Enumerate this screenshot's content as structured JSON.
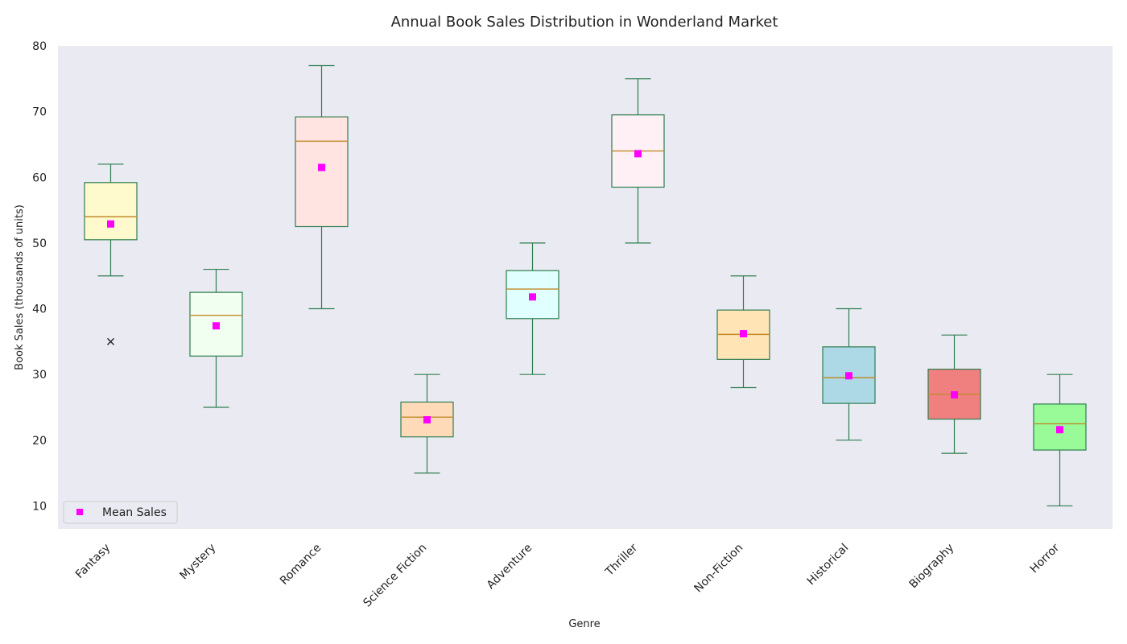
{
  "chart_data": {
    "type": "box",
    "title": "Annual Book Sales Distribution in Wonderland Market",
    "xlabel": "Genre",
    "ylabel": "Book Sales (thousands of units)",
    "ylim": [
      6.5,
      80
    ],
    "yticks": [
      10,
      20,
      30,
      40,
      50,
      60,
      70,
      80
    ],
    "grid": false,
    "legend": {
      "position": "lower-left",
      "entries": [
        "Mean Sales"
      ]
    },
    "colors": {
      "plot_bg": "#eaeaf2",
      "box_edge": "#2e7d4f",
      "median": "#c08a2a",
      "mean_marker": "#ff00ff",
      "outlier": "#222222"
    },
    "categories": [
      "Fantasy",
      "Mystery",
      "Romance",
      "Science Fiction",
      "Adventure",
      "Thriller",
      "Non-Fiction",
      "Historical",
      "Biography",
      "Horror"
    ],
    "boxes": [
      {
        "min": 45,
        "q1": 50.5,
        "median": 54,
        "q3": 59.2,
        "max": 62,
        "mean": 52.9,
        "outliers": [
          35
        ],
        "fill": "#fffacd"
      },
      {
        "min": 25,
        "q1": 32.8,
        "median": 39,
        "q3": 42.5,
        "max": 46,
        "mean": 37.4,
        "outliers": [],
        "fill": "#f0fff0"
      },
      {
        "min": 40,
        "q1": 52.5,
        "median": 65.5,
        "q3": 69.2,
        "max": 77,
        "mean": 61.5,
        "outliers": [],
        "fill": "#ffe4e1"
      },
      {
        "min": 15,
        "q1": 20.5,
        "median": 23.5,
        "q3": 25.8,
        "max": 30,
        "mean": 23.1,
        "outliers": [],
        "fill": "#ffdab9"
      },
      {
        "min": 30,
        "q1": 38.5,
        "median": 43,
        "q3": 45.8,
        "max": 50,
        "mean": 41.8,
        "outliers": [],
        "fill": "#e0ffff"
      },
      {
        "min": 50,
        "q1": 58.5,
        "median": 64,
        "q3": 69.5,
        "max": 75,
        "mean": 63.6,
        "outliers": [],
        "fill": "#fff0f5"
      },
      {
        "min": 28,
        "q1": 32.3,
        "median": 36.1,
        "q3": 39.8,
        "max": 45,
        "mean": 36.2,
        "outliers": [],
        "fill": "#ffe4b5"
      },
      {
        "min": 20,
        "q1": 25.6,
        "median": 29.5,
        "q3": 34.2,
        "max": 40,
        "mean": 29.8,
        "outliers": [],
        "fill": "#add8e6"
      },
      {
        "min": 18,
        "q1": 23.2,
        "median": 27,
        "q3": 30.8,
        "max": 36,
        "mean": 26.9,
        "outliers": [],
        "fill": "#f08080"
      },
      {
        "min": 10,
        "q1": 18.5,
        "median": 22.5,
        "q3": 25.5,
        "max": 30,
        "mean": 21.6,
        "outliers": [],
        "fill": "#98fb98"
      }
    ]
  }
}
